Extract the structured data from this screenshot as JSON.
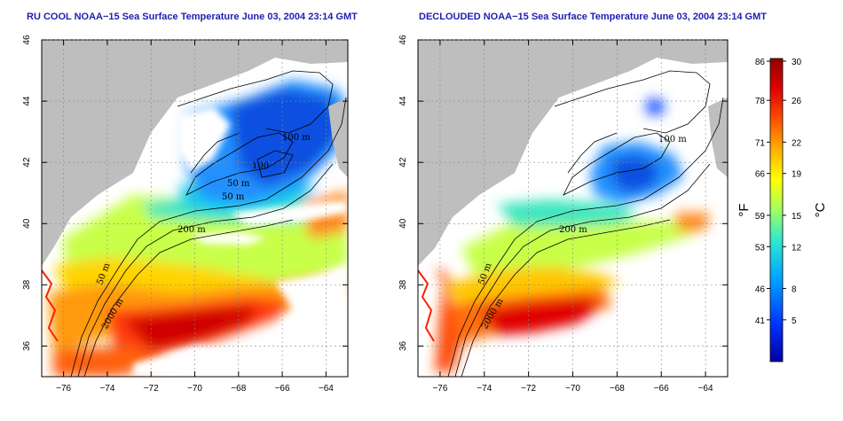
{
  "panels": [
    {
      "title": "RU COOL NOAA−15 Sea Surface Temperature June 03, 2004 23:14 GMT"
    },
    {
      "title": "DECLOUDED NOAA−15 Sea Surface Temperature June 03, 2004 23:14 GMT"
    }
  ],
  "axes": {
    "lon_ticks": [
      -76,
      -74,
      -72,
      -70,
      -68,
      -66,
      -64
    ],
    "lon_labels": [
      "−76",
      "−74",
      "−72",
      "−70",
      "−68",
      "−66",
      "−64"
    ],
    "lat_ticks": [
      36,
      38,
      40,
      42,
      44,
      46
    ],
    "lat_labels": [
      "36",
      "38",
      "40",
      "42",
      "44",
      "46"
    ],
    "lon_range": [
      -77,
      -63
    ],
    "lat_range": [
      35,
      46
    ]
  },
  "isobaths": {
    "left": [
      "100 m",
      "100",
      "50 m",
      "50 m",
      "200 m",
      "50 m",
      "2000 m"
    ],
    "right": [
      "100 m",
      "200 m",
      "50 m",
      "2000 m"
    ]
  },
  "colorbar": {
    "fahrenheit_labels": [
      "86",
      "78",
      "71",
      "66",
      "59",
      "53",
      "46",
      "41"
    ],
    "celsius_labels": [
      "30",
      "26",
      "22",
      "19",
      "15",
      "12",
      "8",
      "5"
    ],
    "celsius_range": [
      1,
      30
    ],
    "f_unit": "°F",
    "c_unit": "°C",
    "colors": [
      "#0000a0",
      "#0030ff",
      "#00a8ff",
      "#30e8d0",
      "#a0ff60",
      "#ffff00",
      "#ffb000",
      "#ff5000",
      "#e00000",
      "#900000"
    ]
  },
  "colors": {
    "land": "#bebebe",
    "cloud": "#ffffff",
    "title": "#1f1fb0"
  }
}
